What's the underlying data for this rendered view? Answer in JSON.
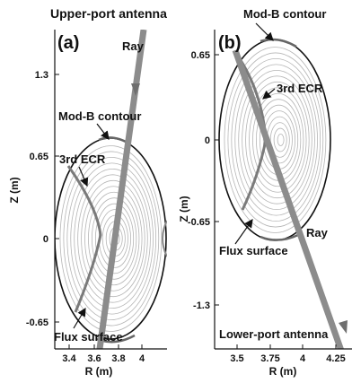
{
  "panels": [
    {
      "id": "a",
      "label": "(a)",
      "title": "Upper-port antenna",
      "xlabel": "R (m)",
      "ylabel": "Z (m)",
      "xticks": [
        "3.4",
        "3.6",
        "3.8",
        "4"
      ],
      "yticks": [
        "1.3",
        "0.65",
        "0",
        "-0.65"
      ],
      "annotations": {
        "ray": "Ray",
        "modb": "Mod-B contour",
        "ecr": "3rd ECR",
        "flux": "Flux surface"
      }
    },
    {
      "id": "b",
      "label": "(b)",
      "title": "Lower-port antenna",
      "xlabel": "R (m)",
      "ylabel": "Z (m)",
      "xticks": [
        "3.5",
        "3.75",
        "4",
        "4.25"
      ],
      "yticks": [
        "0.65",
        "0",
        "-0.65",
        "-1.3"
      ],
      "annotations": {
        "ray": "Ray",
        "modb": "Mod-B contour",
        "ecr": "3rd ECR",
        "flux": "Flux surface"
      }
    }
  ],
  "colors": {
    "ray": "#8c8c8c",
    "flux_surface": "#b5b5b5",
    "ecr_curve": "#7a7a7a",
    "boundary": "#111111"
  }
}
